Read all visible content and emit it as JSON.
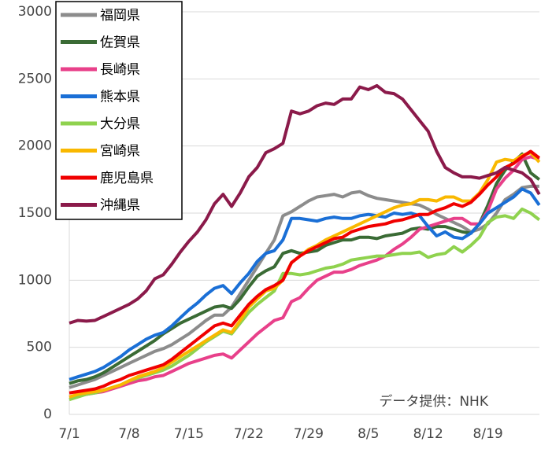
{
  "chart_data": {
    "type": "line",
    "annotation": "データ提供：NHK",
    "categories": [
      "7/1",
      null,
      null,
      null,
      null,
      null,
      null,
      "7/8",
      null,
      null,
      null,
      null,
      null,
      null,
      "7/15",
      null,
      null,
      null,
      null,
      null,
      null,
      "7/22",
      null,
      null,
      null,
      null,
      null,
      null,
      "7/29",
      null,
      null,
      null,
      null,
      null,
      null,
      "8/5",
      null,
      null,
      null,
      null,
      null,
      null,
      "8/12",
      null,
      null,
      null,
      null,
      null,
      null,
      "8/19",
      null,
      null,
      null,
      null,
      null,
      null
    ],
    "ylim": [
      0,
      3000
    ],
    "yticks": [
      0,
      500,
      1000,
      1500,
      2000,
      2500,
      3000
    ],
    "grid": true,
    "legend": "upper left",
    "series": [
      {
        "name": "福岡県",
        "color": "#8c8c8c",
        "values": [
          200,
          220,
          240,
          260,
          290,
          320,
          350,
          380,
          410,
          440,
          470,
          490,
          520,
          560,
          600,
          650,
          700,
          740,
          740,
          800,
          900,
          1000,
          1100,
          1200,
          1300,
          1480,
          1510,
          1550,
          1590,
          1620,
          1630,
          1640,
          1620,
          1650,
          1660,
          1630,
          1610,
          1600,
          1590,
          1580,
          1570,
          1560,
          1530,
          1490,
          1460,
          1430,
          1400,
          1360,
          1380,
          1420,
          1500,
          1600,
          1640,
          1690,
          1700,
          1700
        ]
      },
      {
        "name": "佐賀県",
        "color": "#3a6b35",
        "values": [
          230,
          250,
          260,
          280,
          310,
          350,
          390,
          430,
          470,
          510,
          550,
          600,
          640,
          680,
          710,
          740,
          770,
          800,
          810,
          790,
          860,
          950,
          1030,
          1070,
          1100,
          1200,
          1220,
          1200,
          1210,
          1220,
          1260,
          1280,
          1300,
          1300,
          1320,
          1320,
          1310,
          1330,
          1340,
          1350,
          1380,
          1390,
          1380,
          1400,
          1400,
          1380,
          1360,
          1350,
          1420,
          1560,
          1720,
          1820,
          1880,
          1940,
          1800,
          1750
        ]
      },
      {
        "name": "長崎県",
        "color": "#e8408a",
        "values": [
          130,
          140,
          150,
          160,
          170,
          190,
          210,
          230,
          250,
          260,
          280,
          290,
          320,
          350,
          380,
          400,
          420,
          440,
          450,
          420,
          480,
          540,
          600,
          650,
          700,
          720,
          840,
          870,
          940,
          1000,
          1030,
          1060,
          1060,
          1080,
          1110,
          1130,
          1150,
          1180,
          1230,
          1270,
          1320,
          1380,
          1400,
          1420,
          1440,
          1460,
          1460,
          1420,
          1420,
          1520,
          1680,
          1760,
          1820,
          1900,
          1920,
          1900
        ]
      },
      {
        "name": "熊本県",
        "color": "#1a6fd6",
        "values": [
          260,
          280,
          300,
          320,
          350,
          390,
          430,
          480,
          520,
          560,
          590,
          610,
          660,
          720,
          780,
          830,
          890,
          940,
          960,
          900,
          980,
          1050,
          1140,
          1200,
          1220,
          1300,
          1460,
          1460,
          1450,
          1440,
          1460,
          1470,
          1460,
          1460,
          1480,
          1490,
          1480,
          1470,
          1500,
          1490,
          1500,
          1480,
          1400,
          1330,
          1360,
          1320,
          1310,
          1350,
          1420,
          1500,
          1540,
          1580,
          1620,
          1680,
          1650,
          1560
        ]
      },
      {
        "name": "大分県",
        "color": "#8fd24e",
        "values": [
          110,
          130,
          150,
          160,
          180,
          200,
          220,
          250,
          270,
          290,
          310,
          330,
          360,
          400,
          440,
          490,
          540,
          580,
          620,
          600,
          680,
          760,
          820,
          870,
          920,
          1050,
          1050,
          1040,
          1050,
          1070,
          1090,
          1100,
          1120,
          1150,
          1160,
          1170,
          1180,
          1180,
          1190,
          1200,
          1200,
          1210,
          1170,
          1190,
          1200,
          1250,
          1210,
          1260,
          1320,
          1430,
          1470,
          1480,
          1460,
          1530,
          1500,
          1450
        ]
      },
      {
        "name": "宮崎県",
        "color": "#f9b800",
        "values": [
          130,
          150,
          160,
          170,
          180,
          200,
          220,
          250,
          280,
          300,
          320,
          350,
          390,
          430,
          470,
          510,
          550,
          590,
          630,
          610,
          700,
          800,
          860,
          920,
          940,
          1000,
          1130,
          1180,
          1230,
          1260,
          1300,
          1330,
          1360,
          1390,
          1420,
          1450,
          1480,
          1510,
          1540,
          1560,
          1570,
          1600,
          1600,
          1590,
          1620,
          1620,
          1590,
          1590,
          1650,
          1750,
          1880,
          1900,
          1890,
          1930,
          1950,
          1880
        ]
      },
      {
        "name": "鹿児島県",
        "color": "#f00000",
        "values": [
          160,
          170,
          180,
          190,
          210,
          240,
          260,
          290,
          310,
          330,
          350,
          370,
          410,
          460,
          510,
          560,
          610,
          660,
          680,
          660,
          740,
          820,
          880,
          930,
          960,
          1000,
          1130,
          1180,
          1220,
          1250,
          1280,
          1310,
          1320,
          1360,
          1380,
          1400,
          1410,
          1420,
          1440,
          1450,
          1470,
          1490,
          1490,
          1520,
          1540,
          1570,
          1550,
          1580,
          1640,
          1710,
          1770,
          1840,
          1870,
          1920,
          1960,
          1910
        ]
      },
      {
        "name": "沖縄県",
        "color": "#8b1a4a",
        "values": [
          680,
          700,
          695,
          700,
          730,
          760,
          790,
          820,
          860,
          920,
          1010,
          1040,
          1120,
          1210,
          1290,
          1360,
          1450,
          1570,
          1640,
          1550,
          1650,
          1770,
          1840,
          1950,
          1980,
          2020,
          2260,
          2240,
          2260,
          2300,
          2320,
          2310,
          2350,
          2350,
          2440,
          2420,
          2450,
          2400,
          2390,
          2350,
          2270,
          2190,
          2110,
          1960,
          1840,
          1800,
          1770,
          1770,
          1760,
          1780,
          1800,
          1840,
          1820,
          1800,
          1750,
          1640
        ]
      }
    ]
  }
}
